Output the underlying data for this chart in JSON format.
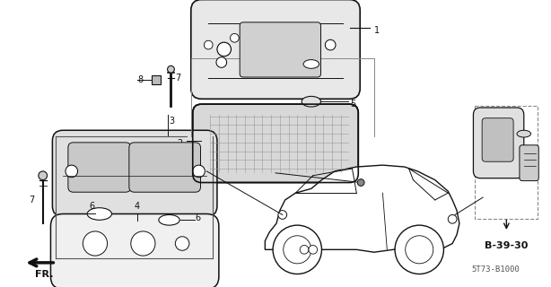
{
  "bg_color": "#ffffff",
  "line_color": "#111111",
  "gray": "#aaaaaa",
  "diagram_code": "5T73-B1000",
  "ref_code": "B-39-30",
  "figsize": [
    6.14,
    3.2
  ],
  "dpi": 100
}
